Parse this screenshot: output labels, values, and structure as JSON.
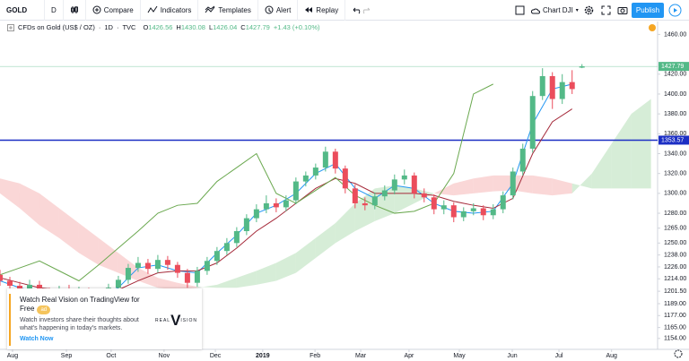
{
  "toolbar": {
    "symbol": "GOLD",
    "interval": "D",
    "compare": "Compare",
    "indicators": "Indicators",
    "templates": "Templates",
    "alert": "Alert",
    "replay": "Replay",
    "layout": "Chart DJI",
    "publish": "Publish"
  },
  "legend": {
    "name": "CFDs on Gold (US$ / OZ)",
    "interval": "1D",
    "source": "TVC",
    "ohlc_labels": [
      "O",
      "H",
      "L",
      "C"
    ],
    "change": "+1.43 (+0.10%)"
  },
  "ad": {
    "title": "Watch Real Vision on TradingView for Free",
    "badge": "ad",
    "body": "Watch investors share their thoughts about what's happening in today's markets.",
    "cta": "Watch Now",
    "logo": [
      "REAL",
      "V",
      "ISION"
    ]
  },
  "chart_data": {
    "type": "candlestick",
    "xlim": [
      0,
      200
    ],
    "ylim": [
      1143,
      1473
    ],
    "grid": false,
    "up_color": "#53b987",
    "down_color": "#eb4d5c",
    "x": [
      0,
      3,
      6,
      9,
      12,
      15,
      18,
      21,
      24,
      27,
      30,
      33,
      36,
      39,
      42,
      45,
      48,
      51,
      54,
      57,
      60,
      63,
      66,
      69,
      72,
      75,
      78,
      81,
      84,
      87,
      90,
      93,
      96,
      99,
      102,
      105,
      108,
      111,
      114,
      117,
      120,
      123,
      126,
      129,
      132,
      135,
      138,
      141,
      144,
      147,
      150,
      153,
      156,
      159,
      162,
      165,
      168,
      171,
      174,
      177
    ],
    "candles": [
      [
        1218,
        1223,
        1207,
        1212
      ],
      [
        1212,
        1216,
        1203,
        1207
      ],
      [
        1207,
        1211,
        1199,
        1203
      ],
      [
        1203,
        1213,
        1199,
        1208
      ],
      [
        1208,
        1212,
        1195,
        1200
      ],
      [
        1200,
        1205,
        1191,
        1196
      ],
      [
        1196,
        1207,
        1192,
        1203
      ],
      [
        1203,
        1208,
        1193,
        1198
      ],
      [
        1198,
        1206,
        1194,
        1201
      ],
      [
        1201,
        1205,
        1190,
        1195
      ],
      [
        1195,
        1204,
        1191,
        1199
      ],
      [
        1199,
        1209,
        1195,
        1205
      ],
      [
        1205,
        1217,
        1201,
        1213
      ],
      [
        1213,
        1229,
        1209,
        1225
      ],
      [
        1225,
        1236,
        1221,
        1230
      ],
      [
        1230,
        1234,
        1219,
        1224
      ],
      [
        1224,
        1238,
        1220,
        1233
      ],
      [
        1233,
        1237,
        1223,
        1228
      ],
      [
        1228,
        1231,
        1215,
        1220
      ],
      [
        1220,
        1224,
        1205,
        1210
      ],
      [
        1210,
        1226,
        1206,
        1222
      ],
      [
        1222,
        1236,
        1218,
        1232
      ],
      [
        1232,
        1246,
        1228,
        1242
      ],
      [
        1242,
        1255,
        1238,
        1250
      ],
      [
        1250,
        1266,
        1246,
        1262
      ],
      [
        1262,
        1279,
        1258,
        1275
      ],
      [
        1275,
        1289,
        1271,
        1284
      ],
      [
        1284,
        1298,
        1280,
        1290
      ],
      [
        1290,
        1295,
        1281,
        1286
      ],
      [
        1286,
        1298,
        1282,
        1293
      ],
      [
        1293,
        1316,
        1289,
        1312
      ],
      [
        1312,
        1322,
        1307,
        1318
      ],
      [
        1318,
        1330,
        1314,
        1326
      ],
      [
        1326,
        1347,
        1322,
        1342
      ],
      [
        1342,
        1345,
        1320,
        1325
      ],
      [
        1325,
        1328,
        1300,
        1305
      ],
      [
        1305,
        1309,
        1285,
        1290
      ],
      [
        1290,
        1296,
        1283,
        1288
      ],
      [
        1288,
        1301,
        1284,
        1297
      ],
      [
        1297,
        1308,
        1293,
        1303
      ],
      [
        1303,
        1319,
        1299,
        1314
      ],
      [
        1314,
        1324,
        1309,
        1318
      ],
      [
        1318,
        1321,
        1295,
        1300
      ],
      [
        1300,
        1305,
        1291,
        1296
      ],
      [
        1296,
        1299,
        1279,
        1284
      ],
      [
        1284,
        1293,
        1279,
        1288
      ],
      [
        1288,
        1291,
        1271,
        1276
      ],
      [
        1276,
        1286,
        1272,
        1282
      ],
      [
        1282,
        1290,
        1278,
        1285
      ],
      [
        1285,
        1288,
        1273,
        1278
      ],
      [
        1278,
        1289,
        1274,
        1284
      ],
      [
        1284,
        1302,
        1280,
        1298
      ],
      [
        1298,
        1326,
        1294,
        1322
      ],
      [
        1322,
        1350,
        1318,
        1345
      ],
      [
        1345,
        1403,
        1341,
        1398
      ],
      [
        1398,
        1426,
        1394,
        1418
      ],
      [
        1418,
        1422,
        1385,
        1395
      ],
      [
        1395,
        1420,
        1390,
        1412
      ],
      [
        1412,
        1424,
        1400,
        1405
      ],
      [
        1426.56,
        1430.08,
        1426.04,
        1427.79
      ]
    ],
    "lines": [
      {
        "color": "#2196f3",
        "x": [
          0,
          6,
          12,
          18,
          24,
          30,
          36,
          42,
          48,
          54,
          60,
          66,
          72,
          78,
          84,
          90,
          96,
          102,
          108,
          114,
          120,
          126,
          132,
          138,
          144,
          150,
          156,
          162,
          168,
          174
        ],
        "values": [
          1212,
          1205,
          1200,
          1200,
          1199,
          1197,
          1205,
          1225,
          1228,
          1222,
          1220,
          1240,
          1258,
          1280,
          1288,
          1300,
          1320,
          1330,
          1305,
          1295,
          1308,
          1305,
          1290,
          1282,
          1280,
          1282,
          1310,
          1370,
          1405,
          1410
        ]
      },
      {
        "color": "#a52a3a",
        "x": [
          0,
          6,
          12,
          18,
          24,
          30,
          36,
          42,
          48,
          54,
          60,
          66,
          72,
          78,
          84,
          90,
          96,
          102,
          108,
          114,
          120,
          126,
          132,
          138,
          144,
          150,
          156,
          162,
          168,
          174
        ],
        "values": [
          1215,
          1210,
          1205,
          1203,
          1200,
          1200,
          1203,
          1212,
          1220,
          1222,
          1222,
          1230,
          1245,
          1262,
          1275,
          1290,
          1305,
          1315,
          1310,
          1300,
          1300,
          1300,
          1298,
          1292,
          1288,
          1285,
          1295,
          1340,
          1372,
          1385
        ]
      },
      {
        "color": "#6aa84f",
        "x": [
          0,
          6,
          12,
          18,
          24,
          30,
          36,
          42,
          48,
          54,
          60,
          66,
          72,
          78,
          84,
          90,
          96,
          102,
          108,
          114,
          120,
          126,
          132,
          138,
          144,
          150
        ],
        "values": [
          1218,
          1225,
          1232,
          1222,
          1212,
          1228,
          1245,
          1262,
          1280,
          1288,
          1290,
          1312,
          1326,
          1340,
          1300,
          1290,
          1303,
          1316,
          1298,
          1288,
          1280,
          1282,
          1290,
          1320,
          1400,
          1410
        ]
      }
    ],
    "cloud": {
      "up_color": "#a5d6a7",
      "down_color": "#f4a6a6",
      "x": [
        0,
        6,
        12,
        18,
        24,
        30,
        36,
        42,
        48,
        54,
        60,
        66,
        72,
        78,
        84,
        90,
        96,
        102,
        108,
        114,
        120,
        126,
        132,
        138,
        144,
        150,
        156,
        162,
        168,
        174,
        180,
        186,
        192,
        198
      ],
      "span_a": [
        1300,
        1285,
        1268,
        1255,
        1240,
        1228,
        1220,
        1212,
        1205,
        1203,
        1205,
        1208,
        1215,
        1222,
        1230,
        1240,
        1255,
        1270,
        1290,
        1305,
        1308,
        1305,
        1300,
        1298,
        1300,
        1302,
        1303,
        1300,
        1298,
        1300,
        1320,
        1350,
        1380,
        1395
      ],
      "span_b": [
        1315,
        1310,
        1300,
        1285,
        1270,
        1255,
        1240,
        1225,
        1215,
        1210,
        1206,
        1205,
        1205,
        1208,
        1212,
        1220,
        1235,
        1250,
        1262,
        1272,
        1280,
        1290,
        1300,
        1310,
        1315,
        1318,
        1318,
        1318,
        1315,
        1310,
        1305,
        1305,
        1305,
        1305
      ]
    },
    "hline": {
      "value": 1353.57,
      "color": "#1c2fc4"
    },
    "xticks": [
      {
        "value": 3.8,
        "label": "Aug"
      },
      {
        "value": 20.2,
        "label": "Sep"
      },
      {
        "value": 33.8,
        "label": "Oct"
      },
      {
        "value": 49.9,
        "label": "Nov"
      },
      {
        "value": 65.5,
        "label": "Dec"
      },
      {
        "value": 79.9,
        "label": "2019"
      },
      {
        "value": 95.8,
        "label": "Feb"
      },
      {
        "value": 109.7,
        "label": "Mar"
      },
      {
        "value": 124.4,
        "label": "Apr"
      },
      {
        "value": 139.7,
        "label": "May"
      },
      {
        "value": 155.8,
        "label": "Jun"
      },
      {
        "value": 170,
        "label": "Jul"
      },
      {
        "value": 186,
        "label": "Aug"
      }
    ],
    "yticks": [
      {
        "value": 1460,
        "label": "1460.00"
      },
      {
        "value": 1420,
        "label": "1420.00"
      },
      {
        "value": 1400,
        "label": "1400.00"
      },
      {
        "value": 1380,
        "label": "1380.00"
      },
      {
        "value": 1360,
        "label": "1360.00"
      },
      {
        "value": 1340,
        "label": "1340.00"
      },
      {
        "value": 1320,
        "label": "1320.00"
      },
      {
        "value": 1300,
        "label": "1300.00"
      },
      {
        "value": 1280,
        "label": "1280.00"
      },
      {
        "value": 1265,
        "label": "1265.00"
      },
      {
        "value": 1250,
        "label": "1250.00"
      },
      {
        "value": 1238,
        "label": "1238.00"
      },
      {
        "value": 1226,
        "label": "1226.00"
      },
      {
        "value": 1214,
        "label": "1214.00"
      },
      {
        "value": 1201.5,
        "label": "1201.50"
      },
      {
        "value": 1189,
        "label": "1189.00"
      },
      {
        "value": 1177,
        "label": "1177.00"
      },
      {
        "value": 1165,
        "label": "1165.00"
      },
      {
        "value": 1154,
        "label": "1154.00"
      }
    ]
  }
}
